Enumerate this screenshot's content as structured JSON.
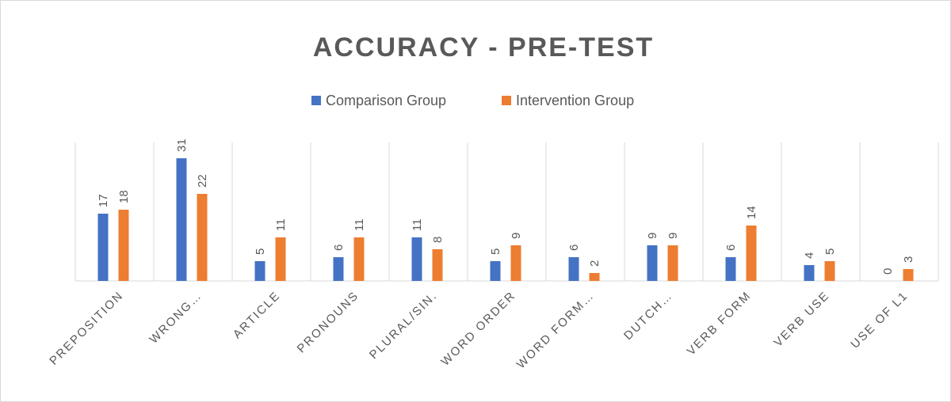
{
  "chart_data": {
    "type": "bar",
    "title": "ACCURACY - PRE-TEST",
    "categories": [
      "PREPOSITION",
      "WRONG…",
      "ARTICLE",
      "PRONOUNS",
      "PLURAL/SIN.",
      "WORD ORDER",
      "WORD FORM…",
      "DUTCH…",
      "VERB FORM",
      "VERB USE",
      "USE OF L1"
    ],
    "series": [
      {
        "name": "Comparison Group",
        "color": "#4472c4",
        "values": [
          17,
          31,
          5,
          6,
          11,
          5,
          6,
          9,
          6,
          4,
          0
        ]
      },
      {
        "name": "Intervention Group",
        "color": "#ed7d31",
        "values": [
          18,
          22,
          11,
          11,
          8,
          9,
          2,
          9,
          14,
          5,
          3
        ]
      }
    ],
    "ylim": [
      0,
      35
    ],
    "legend": "top"
  }
}
